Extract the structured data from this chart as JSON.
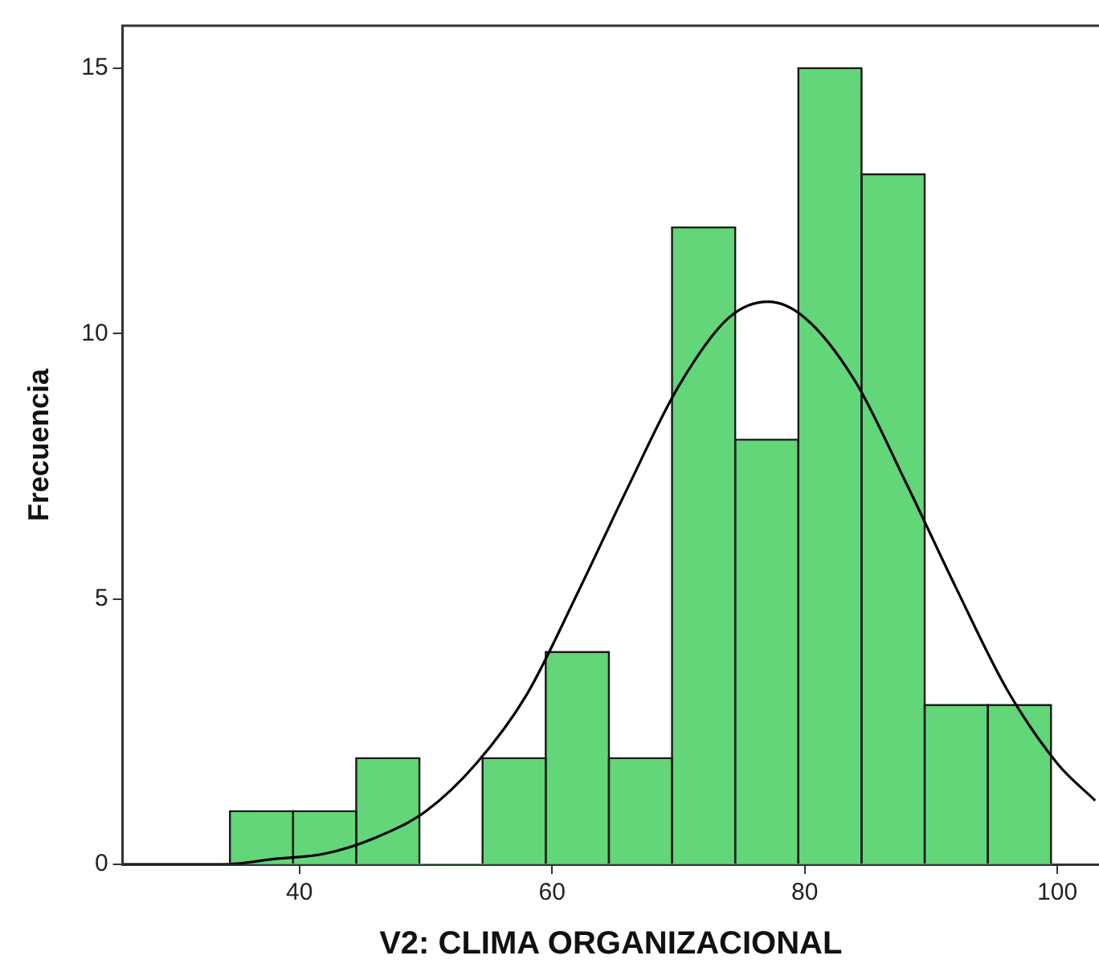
{
  "chart_data": {
    "type": "histogram",
    "xlabel": "V2: CLIMA ORGANIZACIONAL",
    "ylabel": "Frecuencia",
    "bins": [
      34.5,
      39.5,
      44.5,
      49.5,
      54.5,
      59.5,
      64.5,
      69.5,
      74.5,
      79.5,
      84.5,
      89.5,
      94.5,
      99.5
    ],
    "values": [
      1,
      1,
      2,
      0,
      2,
      4,
      2,
      12,
      8,
      15,
      13,
      3,
      3
    ],
    "color": "#62d678",
    "series": [
      {
        "type": "line",
        "color": "#000000",
        "x": [
          26,
          30,
          34,
          38,
          42,
          46,
          50,
          54,
          58,
          62,
          66,
          70,
          74,
          77.1,
          80,
          84,
          88,
          92,
          96,
          100,
          103
        ],
        "values": [
          0,
          0,
          0,
          0.1,
          0.2,
          0.5,
          1,
          1.9,
          3.2,
          5.1,
          7.1,
          9,
          10.3,
          10.6,
          10.3,
          9.1,
          7.2,
          5.2,
          3.3,
          1.9,
          1.2
        ]
      }
    ],
    "xlim": [
      26,
      103.3
    ],
    "xticks": [
      40,
      60,
      80,
      100
    ],
    "ylim": [
      0,
      15.8
    ],
    "yticks": [
      0,
      5,
      10,
      15
    ]
  }
}
